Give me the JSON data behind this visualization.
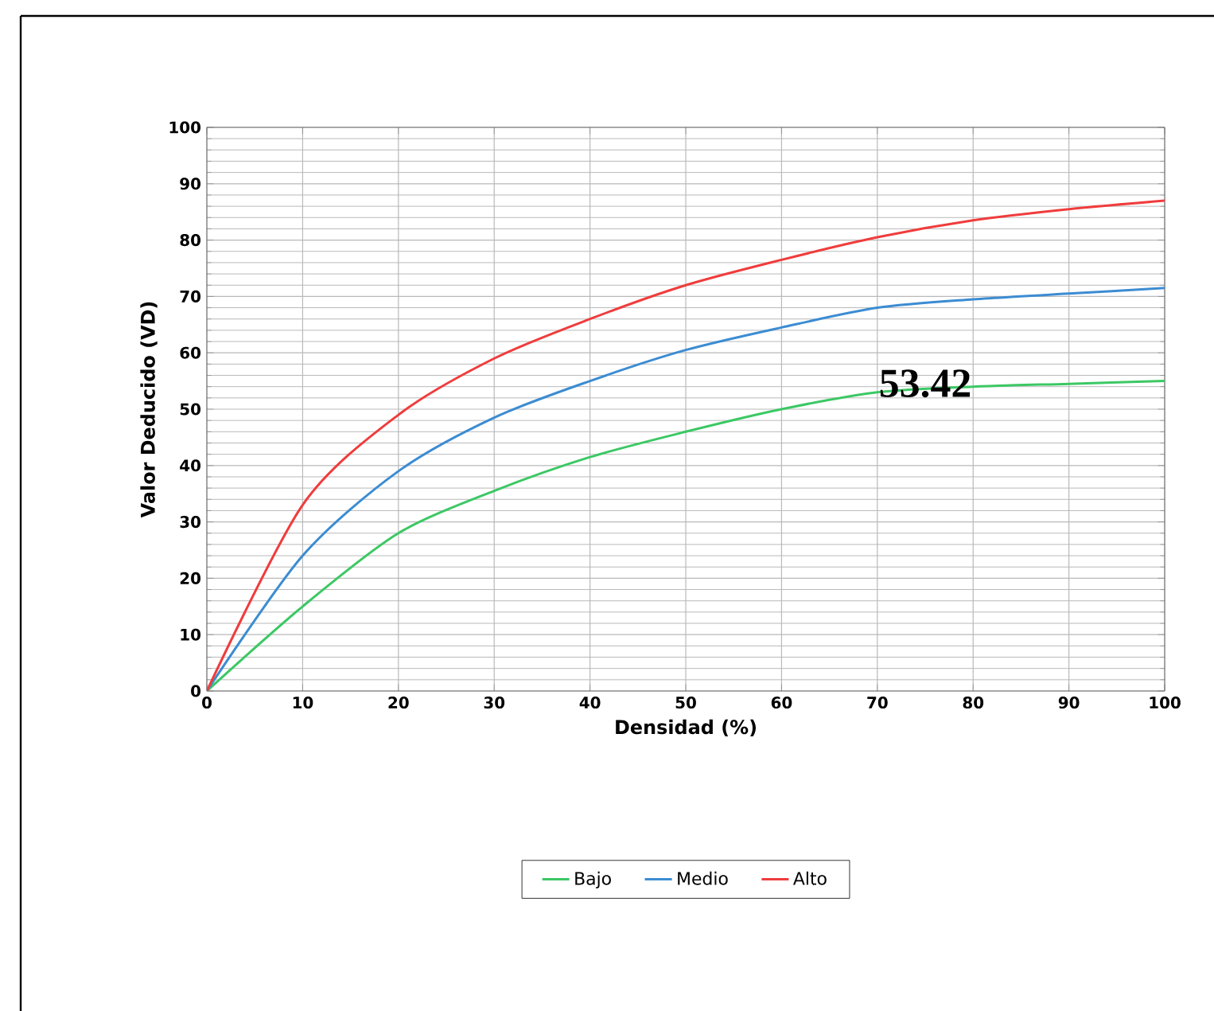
{
  "chart_data": {
    "type": "line",
    "xlabel": "Densidad (%)",
    "ylabel": "Valor Deducido (VD)",
    "x": [
      0,
      10,
      20,
      30,
      40,
      50,
      60,
      70,
      80,
      90,
      100
    ],
    "series": [
      {
        "name": "Bajo",
        "color": "#3cc864",
        "values": [
          0,
          15,
          28,
          35.5,
          41.5,
          46,
          50,
          53,
          54,
          54.5,
          55
        ]
      },
      {
        "name": "Medio",
        "color": "#3c8cd2",
        "values": [
          0,
          24,
          39,
          48.5,
          55,
          60.5,
          64.5,
          68,
          69.5,
          70.5,
          71.5
        ]
      },
      {
        "name": "Alto",
        "color": "#f03c3c",
        "values": [
          0,
          33,
          49,
          59,
          66,
          72,
          76.5,
          80.5,
          83.5,
          85.5,
          87
        ]
      }
    ],
    "annotations": [
      {
        "text": "53.42",
        "x": 75,
        "y": 53.42
      }
    ],
    "xlim": [
      0,
      100
    ],
    "ylim": [
      0,
      100
    ],
    "xticks": [
      0,
      10,
      20,
      30,
      40,
      50,
      60,
      70,
      80,
      90,
      100
    ],
    "yticks": [
      0,
      10,
      20,
      30,
      40,
      50,
      60,
      70,
      80,
      90,
      100
    ],
    "grid": true,
    "legend": "bottom",
    "marker": "none",
    "line_style": "solid"
  }
}
